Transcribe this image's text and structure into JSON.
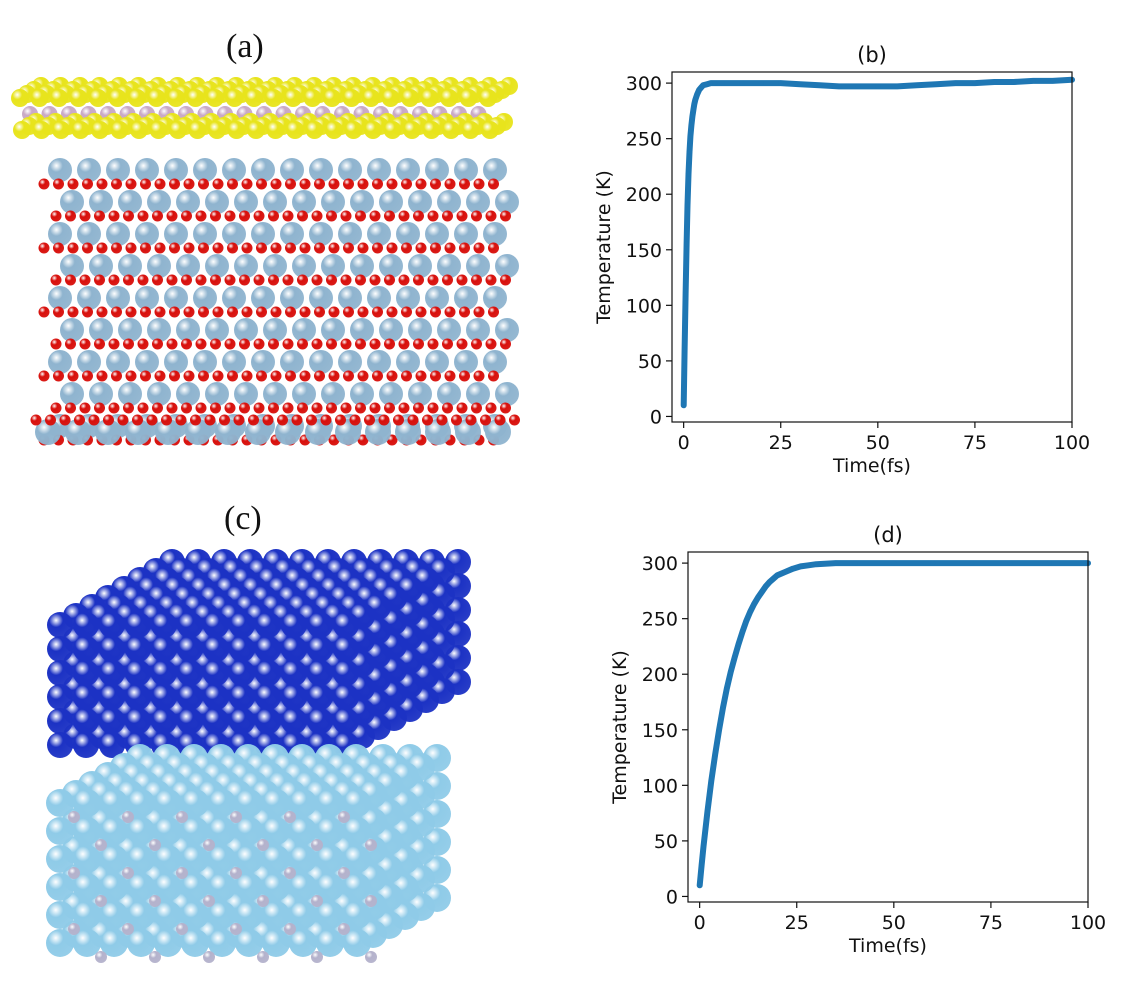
{
  "figure": {
    "labels": {
      "a": "(a)",
      "b": "(b)",
      "c": "(c)",
      "d": "(d)"
    }
  },
  "structures": {
    "top": {
      "colors": {
        "sulfur": "#e8e41c",
        "metal": "#c9a9c6",
        "oxygen": "#d8100c",
        "cation": "#8fb4cf"
      }
    },
    "bottom": {
      "colors": {
        "top_slab": "#1c32c4",
        "bottom_slab": "#8fcbe8",
        "dopant": "#b4b2cc"
      }
    }
  },
  "chart_data": [
    {
      "type": "line",
      "title": "(b)",
      "xlabel": "Time(fs)",
      "ylabel": "Temperature (K)",
      "xlim": [
        -3,
        100
      ],
      "ylim": [
        -5,
        310
      ],
      "xticks": [
        0,
        25,
        50,
        75,
        100
      ],
      "yticks": [
        0,
        50,
        100,
        150,
        200,
        250,
        300
      ],
      "grid": false,
      "color": "#1f77b4",
      "x": [
        0,
        0.25,
        0.5,
        0.75,
        1,
        1.25,
        1.5,
        1.75,
        2,
        2.25,
        2.5,
        2.75,
        3,
        3.5,
        4,
        4.5,
        5,
        6,
        7,
        8,
        10,
        15,
        20,
        25,
        30,
        35,
        40,
        45,
        50,
        55,
        60,
        65,
        70,
        75,
        80,
        85,
        90,
        95,
        100
      ],
      "y": [
        10,
        60,
        110,
        155,
        190,
        218,
        238,
        252,
        262,
        270,
        276,
        281,
        285,
        290,
        294,
        296,
        298,
        299,
        300,
        300,
        300,
        300,
        300,
        300,
        299,
        298,
        297,
        297,
        297,
        297,
        298,
        299,
        300,
        300,
        301,
        301,
        302,
        302,
        303
      ]
    },
    {
      "type": "line",
      "title": "(d)",
      "xlabel": "Time(fs)",
      "ylabel": "Temperature (K)",
      "xlim": [
        -3,
        100
      ],
      "ylim": [
        -5,
        310
      ],
      "xticks": [
        0,
        25,
        50,
        75,
        100
      ],
      "yticks": [
        0,
        50,
        100,
        150,
        200,
        250,
        300
      ],
      "grid": false,
      "color": "#1f77b4",
      "x": [
        0,
        0.5,
        1,
        2,
        3,
        4,
        5,
        6,
        7,
        8,
        9,
        10,
        11,
        12,
        13,
        14,
        15,
        16,
        17,
        18,
        19,
        20,
        22,
        24,
        26,
        28,
        30,
        35,
        40,
        50,
        60,
        70,
        80,
        90,
        100
      ],
      "y": [
        10,
        28,
        45,
        76,
        104,
        128,
        150,
        170,
        187,
        202,
        215,
        227,
        238,
        248,
        256,
        263,
        269,
        274,
        279,
        283,
        286,
        289,
        292,
        295,
        297,
        298,
        299,
        300,
        300,
        300,
        300,
        300,
        300,
        300,
        300
      ]
    }
  ]
}
